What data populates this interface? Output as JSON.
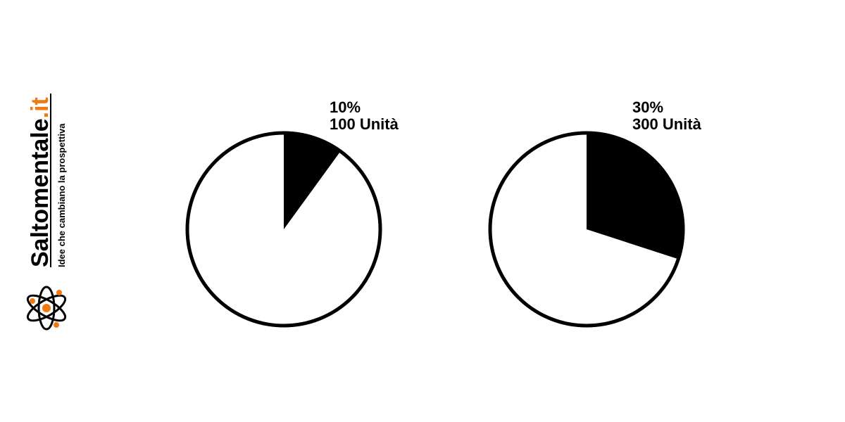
{
  "brand": {
    "name": "Saltomentale",
    "domain": ".it",
    "tagline": "Idee che cambiano la prospettiva",
    "logo_icon": "atom-icon",
    "colors": {
      "text": "#000000",
      "accent": "#f07a12"
    }
  },
  "chart_data": [
    {
      "type": "pie",
      "slices": [
        {
          "value": 10,
          "filled": true
        },
        {
          "value": 90,
          "filled": false
        }
      ],
      "annotation": {
        "percent": "10%",
        "units": "100 Unità"
      },
      "colors": {
        "slice": "#000000",
        "rest": "#ffffff",
        "outline": "#000000"
      }
    },
    {
      "type": "pie",
      "slices": [
        {
          "value": 30,
          "filled": true
        },
        {
          "value": 70,
          "filled": false
        }
      ],
      "annotation": {
        "percent": "30%",
        "units": "300 Unità"
      },
      "colors": {
        "slice": "#000000",
        "rest": "#ffffff",
        "outline": "#000000"
      }
    }
  ]
}
